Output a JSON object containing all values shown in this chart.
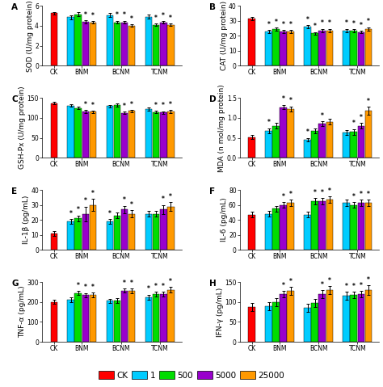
{
  "groups": [
    "CK",
    "BNM",
    "BCNM",
    "TCNM"
  ],
  "series_labels": [
    "CK",
    "1",
    "500",
    "5000",
    "25000"
  ],
  "colors": [
    "#FF0000",
    "#00CCFF",
    "#00DD00",
    "#9900CC",
    "#FF9900"
  ],
  "panels": [
    {
      "label": "A",
      "ylabel": "SOD (U/mg protein)",
      "ylim": [
        0,
        6
      ],
      "yticks": [
        0,
        2,
        4,
        6
      ],
      "data": [
        [
          5.25,
          0,
          0,
          0,
          0
        ],
        [
          0,
          4.85,
          5.15,
          4.4,
          4.35
        ],
        [
          0,
          5.05,
          4.35,
          4.35,
          4.0
        ],
        [
          0,
          4.9,
          4.1,
          4.35,
          4.1
        ]
      ],
      "errors": [
        [
          0.15,
          0,
          0,
          0,
          0
        ],
        [
          0,
          0.18,
          0.18,
          0.15,
          0.12
        ],
        [
          0,
          0.2,
          0.15,
          0.15,
          0.12
        ],
        [
          0,
          0.2,
          0.12,
          0.12,
          0.1
        ]
      ],
      "stars": [
        [
          false,
          false,
          false,
          false,
          false
        ],
        [
          false,
          false,
          false,
          true,
          true
        ],
        [
          false,
          false,
          true,
          true,
          true
        ],
        [
          false,
          false,
          true,
          true,
          true
        ]
      ]
    },
    {
      "label": "B",
      "ylabel": "CAT (U/mg protein)",
      "ylim": [
        0,
        40
      ],
      "yticks": [
        0,
        10,
        20,
        30,
        40
      ],
      "data": [
        [
          31.5,
          0,
          0,
          0,
          0
        ],
        [
          0,
          23.0,
          24.5,
          23.0,
          23.0
        ],
        [
          0,
          26.0,
          21.5,
          23.5,
          23.5
        ],
        [
          0,
          23.5,
          23.5,
          22.5,
          24.5
        ]
      ],
      "errors": [
        [
          1.2,
          0,
          0,
          0,
          0
        ],
        [
          0,
          1.0,
          1.0,
          1.0,
          1.0
        ],
        [
          0,
          1.2,
          1.0,
          1.2,
          1.2
        ],
        [
          0,
          1.2,
          1.0,
          1.0,
          1.2
        ]
      ],
      "stars": [
        [
          false,
          false,
          false,
          false,
          false
        ],
        [
          false,
          true,
          true,
          true,
          true
        ],
        [
          false,
          true,
          true,
          true,
          true
        ],
        [
          false,
          true,
          true,
          true,
          true
        ]
      ]
    },
    {
      "label": "C",
      "ylabel": "GSH-Px (U/mg protein)",
      "ylim": [
        0,
        150
      ],
      "yticks": [
        0,
        50,
        100,
        150
      ],
      "data": [
        [
          137.0,
          0,
          0,
          0,
          0
        ],
        [
          0,
          131.0,
          125.0,
          115.0,
          115.0
        ],
        [
          0,
          130.0,
          132.0,
          112.0,
          117.0
        ],
        [
          0,
          122.0,
          114.0,
          113.0,
          116.0
        ]
      ],
      "errors": [
        [
          3.0,
          0,
          0,
          0,
          0
        ],
        [
          0,
          3.0,
          3.0,
          4.0,
          3.0
        ],
        [
          0,
          3.0,
          4.0,
          3.0,
          3.5
        ],
        [
          0,
          3.5,
          3.0,
          3.5,
          3.5
        ]
      ],
      "stars": [
        [
          false,
          false,
          false,
          false,
          false
        ],
        [
          false,
          false,
          false,
          true,
          true
        ],
        [
          false,
          false,
          false,
          true,
          true
        ],
        [
          false,
          false,
          true,
          true,
          true
        ]
      ]
    },
    {
      "label": "D",
      "ylabel": "MDA (n mol/mg protein)",
      "ylim": [
        0,
        1.5
      ],
      "yticks": [
        0,
        0.5,
        1.0,
        1.5
      ],
      "data": [
        [
          0.52,
          0,
          0,
          0,
          0
        ],
        [
          0,
          0.68,
          0.8,
          1.27,
          1.22
        ],
        [
          0,
          0.45,
          0.68,
          0.85,
          0.9
        ],
        [
          0,
          0.63,
          0.65,
          0.8,
          1.18
        ]
      ],
      "errors": [
        [
          0.05,
          0,
          0,
          0,
          0
        ],
        [
          0,
          0.06,
          0.07,
          0.06,
          0.07
        ],
        [
          0,
          0.05,
          0.06,
          0.06,
          0.07
        ],
        [
          0,
          0.06,
          0.07,
          0.07,
          0.1
        ]
      ],
      "stars": [
        [
          false,
          false,
          false,
          false,
          false
        ],
        [
          false,
          true,
          false,
          true,
          true
        ],
        [
          false,
          true,
          false,
          true,
          false
        ],
        [
          false,
          false,
          true,
          true,
          true
        ]
      ]
    },
    {
      "label": "E",
      "ylabel": "IL-1β (pg/mL)",
      "ylim": [
        0,
        40
      ],
      "yticks": [
        0,
        10,
        20,
        30,
        40
      ],
      "data": [
        [
          11.0,
          0,
          0,
          0,
          0
        ],
        [
          0,
          19.0,
          21.0,
          24.0,
          30.0
        ],
        [
          0,
          19.0,
          23.0,
          27.0,
          24.0
        ],
        [
          0,
          24.0,
          24.0,
          27.0,
          29.0
        ]
      ],
      "errors": [
        [
          1.5,
          0,
          0,
          0,
          0
        ],
        [
          0,
          1.5,
          2.0,
          5.0,
          4.0
        ],
        [
          0,
          1.5,
          2.0,
          2.5,
          2.5
        ],
        [
          0,
          2.0,
          2.0,
          3.0,
          3.0
        ]
      ],
      "stars": [
        [
          false,
          false,
          false,
          false,
          false
        ],
        [
          false,
          true,
          true,
          true,
          true
        ],
        [
          false,
          true,
          false,
          true,
          true
        ],
        [
          false,
          false,
          false,
          true,
          true
        ]
      ]
    },
    {
      "label": "F",
      "ylabel": "IL-6 (pg/mL)",
      "ylim": [
        0,
        80
      ],
      "yticks": [
        0,
        20,
        40,
        60,
        80
      ],
      "data": [
        [
          47.0,
          0,
          0,
          0,
          0
        ],
        [
          0,
          48.0,
          55.0,
          60.0,
          63.0
        ],
        [
          0,
          47.0,
          65.0,
          65.0,
          67.0
        ],
        [
          0,
          63.0,
          60.0,
          63.0,
          63.0
        ]
      ],
      "errors": [
        [
          4.0,
          0,
          0,
          0,
          0
        ],
        [
          0,
          4.0,
          4.0,
          4.0,
          4.0
        ],
        [
          0,
          4.0,
          4.0,
          4.0,
          4.0
        ],
        [
          0,
          4.0,
          4.0,
          4.0,
          4.0
        ]
      ],
      "stars": [
        [
          false,
          false,
          false,
          false,
          false
        ],
        [
          false,
          false,
          false,
          true,
          true
        ],
        [
          false,
          false,
          true,
          true,
          true
        ],
        [
          false,
          false,
          true,
          true,
          true
        ]
      ]
    },
    {
      "label": "G",
      "ylabel": "TNF-α (pg/mL)",
      "ylim": [
        0,
        300
      ],
      "yticks": [
        0,
        100,
        200,
        300
      ],
      "data": [
        [
          200.0,
          0,
          0,
          0,
          0
        ],
        [
          0,
          210.0,
          245.0,
          235.0,
          235.0
        ],
        [
          0,
          207.0,
          207.0,
          257.0,
          255.0
        ],
        [
          0,
          225.0,
          240.0,
          240.0,
          262.0
        ]
      ],
      "errors": [
        [
          10.0,
          0,
          0,
          0,
          0
        ],
        [
          0,
          12.0,
          10.0,
          10.0,
          12.0
        ],
        [
          0,
          10.0,
          12.0,
          10.0,
          12.0
        ],
        [
          0,
          12.0,
          12.0,
          12.0,
          15.0
        ]
      ],
      "stars": [
        [
          false,
          false,
          false,
          false,
          false
        ],
        [
          false,
          false,
          true,
          true,
          true
        ],
        [
          false,
          false,
          false,
          true,
          true
        ],
        [
          false,
          true,
          true,
          true,
          true
        ]
      ]
    },
    {
      "label": "H",
      "ylabel": "IFN-γ (pg/mL)",
      "ylim": [
        0,
        150
      ],
      "yticks": [
        0,
        50,
        100,
        150
      ],
      "data": [
        [
          87.0,
          0,
          0,
          0,
          0
        ],
        [
          0,
          90.0,
          100.0,
          120.0,
          128.0
        ],
        [
          0,
          85.0,
          97.0,
          120.0,
          130.0
        ],
        [
          0,
          115.0,
          118.0,
          120.0,
          130.0
        ]
      ],
      "errors": [
        [
          10.0,
          0,
          0,
          0,
          0
        ],
        [
          0,
          10.0,
          10.0,
          8.0,
          10.0
        ],
        [
          0,
          10.0,
          10.0,
          10.0,
          10.0
        ],
        [
          0,
          10.0,
          8.0,
          8.0,
          12.0
        ]
      ],
      "stars": [
        [
          false,
          false,
          false,
          false,
          false
        ],
        [
          false,
          false,
          false,
          true,
          true
        ],
        [
          false,
          false,
          false,
          true,
          true
        ],
        [
          false,
          true,
          true,
          true,
          true
        ]
      ]
    }
  ],
  "legend_labels": [
    "CK",
    "1",
    "500",
    "5000",
    "25000"
  ],
  "legend_colors": [
    "#FF0000",
    "#00CCFF",
    "#00DD00",
    "#9900CC",
    "#FF9900"
  ],
  "background_color": "#FFFFFF",
  "star_fontsize": 5.5,
  "label_fontsize": 6.5,
  "tick_fontsize": 5.5
}
